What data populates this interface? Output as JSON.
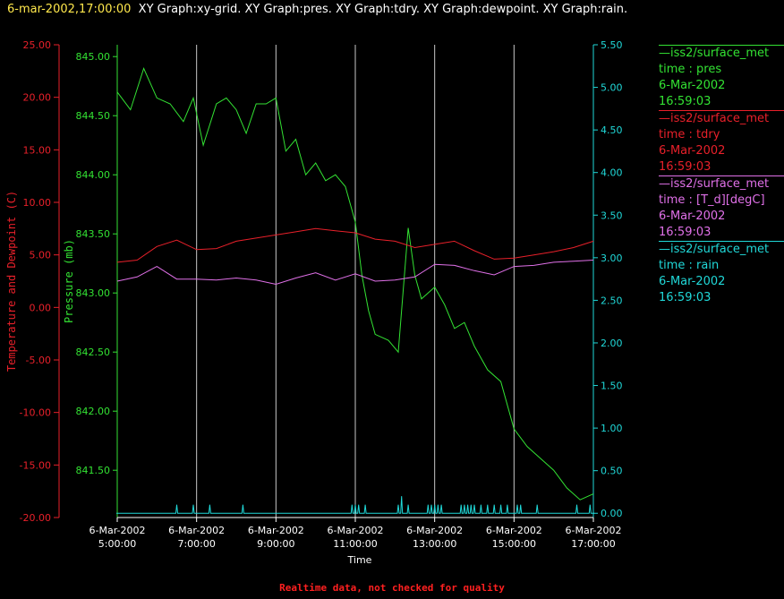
{
  "header": {
    "datetime": "6-mar-2002,17:00:00",
    "titles": "XY Graph:xy-grid.  XY Graph:pres.  XY Graph:tdry.  XY Graph:dewpoint.  XY Graph:rain."
  },
  "footer": "Realtime data, not checked for quality",
  "colors": {
    "pres": "#33e233",
    "tdry": "#e8202a",
    "dewpoint": "#e070e8",
    "rain": "#20d8d8",
    "grid": "#c8c8c8",
    "bg": "#000000"
  },
  "legend": [
    {
      "name": "iss2/surface_met",
      "field": "time : pres",
      "date": "6-Mar-2002",
      "time": "16:59:03",
      "color": "#33e233"
    },
    {
      "name": "iss2/surface_met",
      "field": "time : tdry",
      "date": "6-Mar-2002",
      "time": "16:59:03",
      "color": "#e8202a"
    },
    {
      "name": "iss2/surface_met",
      "field": "time : [T_d][degC]",
      "date": "6-Mar-2002",
      "time": "16:59:03",
      "color": "#e070e8"
    },
    {
      "name": "iss2/surface_met",
      "field": "time : rain",
      "date": "6-Mar-2002",
      "time": "16:59:03",
      "color": "#20d8d8"
    }
  ],
  "chart_data": {
    "type": "line",
    "xlabel": "Time",
    "ylabel_left_outer": "Temperature and Dewpoint (C)",
    "ylabel_left_inner": "Pressure (mb)",
    "xlim": [
      "2002-03-06 05:00",
      "2002-03-06 17:00"
    ],
    "x_ticks": [
      {
        "date": "6-Mar-2002",
        "time": "5:00:00"
      },
      {
        "date": "6-Mar-2002",
        "time": "7:00:00"
      },
      {
        "date": "6-Mar-2002",
        "time": "9:00:00"
      },
      {
        "date": "6-Mar-2002",
        "time": "11:00:00"
      },
      {
        "date": "6-Mar-2002",
        "time": "13:00:00"
      },
      {
        "date": "6-Mar-2002",
        "time": "15:00:00"
      },
      {
        "date": "6-Mar-2002",
        "time": "17:00:00"
      }
    ],
    "temp_axis": {
      "ylim": [
        -20,
        25
      ],
      "ticks": [
        "25.00",
        "20.00",
        "15.00",
        "10.00",
        "5.00",
        "0.00",
        "-5.00",
        "-10.00",
        "-15.00",
        "-20.00"
      ]
    },
    "pres_axis": {
      "ylim": [
        841.1,
        845.1
      ],
      "ticks": [
        "845.00",
        "844.50",
        "844.00",
        "843.50",
        "843.00",
        "842.50",
        "842.00",
        "841.50"
      ]
    },
    "rain_axis": {
      "ylim": [
        -0.05,
        5.5
      ],
      "ticks": [
        "5.50",
        "5.00",
        "4.50",
        "4.00",
        "3.50",
        "3.00",
        "2.50",
        "2.00",
        "1.50",
        "1.00",
        "0.50",
        "0.00"
      ]
    },
    "grid": "vertical",
    "legend_position": "right",
    "series": [
      {
        "name": "time : pres",
        "axis": "pres",
        "x": [
          "05:00",
          "05:20",
          "05:40",
          "06:00",
          "06:20",
          "06:40",
          "06:55",
          "07:10",
          "07:30",
          "07:45",
          "08:00",
          "08:15",
          "08:30",
          "08:45",
          "09:00",
          "09:15",
          "09:30",
          "09:45",
          "10:00",
          "10:15",
          "10:30",
          "10:45",
          "11:00",
          "11:10",
          "11:20",
          "11:30",
          "11:50",
          "12:05",
          "12:20",
          "12:30",
          "12:40",
          "12:50",
          "13:00",
          "13:15",
          "13:30",
          "13:45",
          "14:00",
          "14:20",
          "14:40",
          "15:00",
          "15:20",
          "15:40",
          "16:00",
          "16:20",
          "16:40",
          "17:00"
        ],
        "y": [
          844.7,
          844.55,
          844.9,
          844.65,
          844.6,
          844.45,
          844.65,
          844.25,
          844.6,
          844.65,
          844.55,
          844.35,
          844.6,
          844.6,
          844.65,
          844.2,
          844.3,
          844.0,
          844.1,
          843.95,
          844.0,
          843.9,
          843.6,
          843.15,
          842.85,
          842.65,
          842.6,
          842.5,
          843.55,
          843.15,
          842.95,
          843.0,
          843.05,
          842.9,
          842.7,
          842.75,
          842.55,
          842.35,
          842.25,
          841.85,
          841.7,
          841.6,
          841.5,
          841.35,
          841.25,
          841.3
        ]
      },
      {
        "name": "time : tdry",
        "axis": "temp",
        "x": [
          "05:00",
          "05:30",
          "06:00",
          "06:30",
          "07:00",
          "07:30",
          "08:00",
          "08:30",
          "09:00",
          "09:30",
          "10:00",
          "10:30",
          "11:00",
          "11:30",
          "12:00",
          "12:30",
          "13:00",
          "13:30",
          "14:00",
          "14:30",
          "15:00",
          "15:30",
          "16:00",
          "16:30",
          "17:00"
        ],
        "y": [
          4.3,
          4.5,
          5.8,
          6.4,
          5.5,
          5.6,
          6.3,
          6.6,
          6.9,
          7.2,
          7.5,
          7.3,
          7.1,
          6.5,
          6.3,
          5.7,
          6.0,
          6.3,
          5.4,
          4.6,
          4.7,
          5.0,
          5.3,
          5.7,
          6.3
        ]
      },
      {
        "name": "time : [T_d][degC]",
        "axis": "temp",
        "x": [
          "05:00",
          "05:30",
          "06:00",
          "06:30",
          "07:00",
          "07:30",
          "08:00",
          "08:30",
          "09:00",
          "09:30",
          "10:00",
          "10:30",
          "11:00",
          "11:30",
          "12:00",
          "12:30",
          "13:00",
          "13:30",
          "14:00",
          "14:30",
          "15:00",
          "15:30",
          "16:00",
          "16:30",
          "17:00"
        ],
        "y": [
          2.5,
          2.9,
          3.9,
          2.7,
          2.7,
          2.6,
          2.8,
          2.6,
          2.2,
          2.8,
          3.3,
          2.6,
          3.2,
          2.5,
          2.6,
          2.9,
          4.1,
          4.0,
          3.5,
          3.1,
          3.9,
          4.0,
          4.3,
          4.4,
          4.5
        ]
      },
      {
        "name": "time : rain",
        "axis": "rain",
        "x": [
          "05:00",
          "06:30",
          "06:55",
          "07:20",
          "08:10",
          "10:55",
          "11:00",
          "11:05",
          "11:15",
          "12:05",
          "12:10",
          "12:20",
          "12:50",
          "12:55",
          "13:00",
          "13:05",
          "13:10",
          "13:40",
          "13:45",
          "13:50",
          "13:55",
          "14:00",
          "14:10",
          "14:20",
          "14:30",
          "14:40",
          "14:50",
          "15:05",
          "15:10",
          "15:35",
          "16:35",
          "16:55",
          "17:00"
        ],
        "y": [
          0.0,
          0.1,
          0.1,
          0.1,
          0.1,
          0.1,
          0.1,
          0.1,
          0.1,
          0.1,
          0.2,
          0.1,
          0.1,
          0.1,
          0.1,
          0.1,
          0.1,
          0.1,
          0.1,
          0.1,
          0.1,
          0.1,
          0.1,
          0.1,
          0.1,
          0.1,
          0.1,
          0.1,
          0.1,
          0.1,
          0.1,
          0.1,
          0.0
        ]
      }
    ]
  }
}
